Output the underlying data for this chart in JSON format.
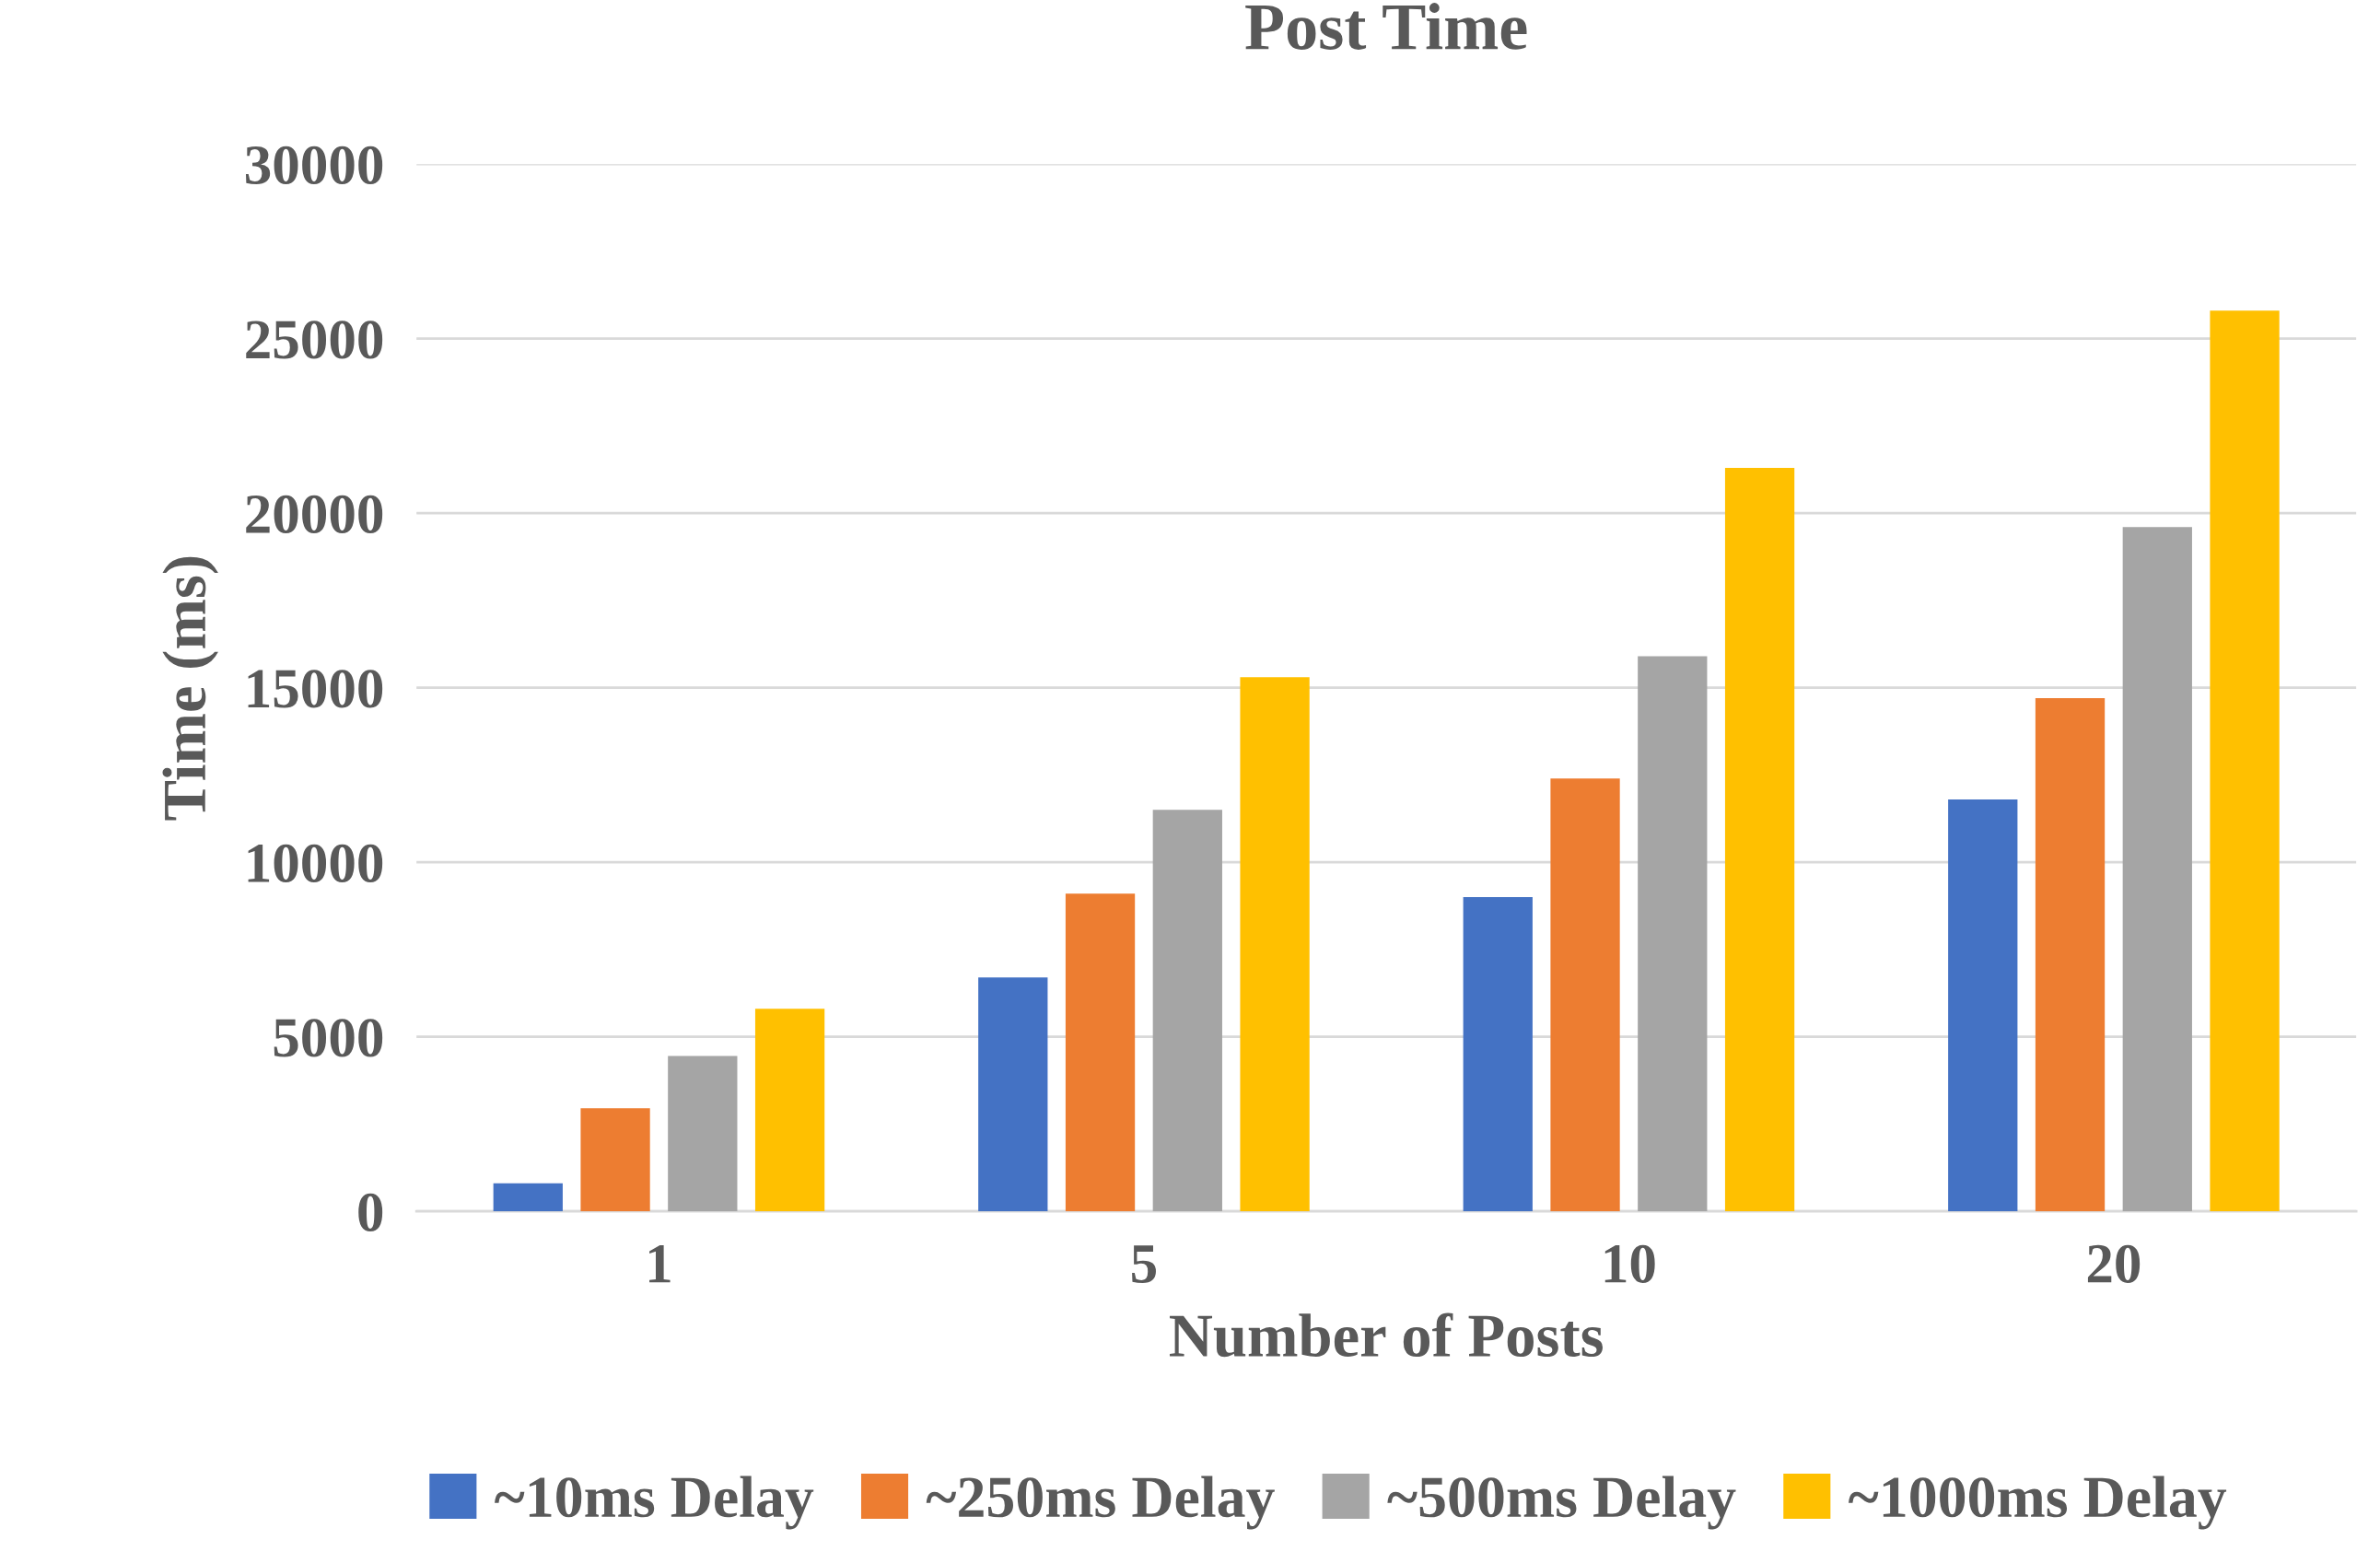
{
  "chart_data": {
    "type": "bar",
    "title": "Post Time",
    "xlabel": "Number of Posts",
    "ylabel": "Time (ms)",
    "categories": [
      "1",
      "5",
      "10",
      "20"
    ],
    "series": [
      {
        "name": "~10ms Delay",
        "color": "#4472c4",
        "values": [
          800,
          6700,
          9000,
          11800
        ]
      },
      {
        "name": "~250ms Delay",
        "color": "#ed7d31",
        "values": [
          2950,
          9100,
          12400,
          14700
        ]
      },
      {
        "name": "~500ms Delay",
        "color": "#a5a5a5",
        "values": [
          4450,
          11500,
          15900,
          19600
        ]
      },
      {
        "name": "~1000ms Delay",
        "color": "#ffc000",
        "values": [
          5800,
          15300,
          21300,
          25800
        ]
      }
    ],
    "ylim": [
      0,
      30000
    ],
    "yticks": [
      0,
      5000,
      10000,
      15000,
      20000,
      25000,
      30000
    ],
    "grid": "y",
    "legend": "bottom"
  }
}
